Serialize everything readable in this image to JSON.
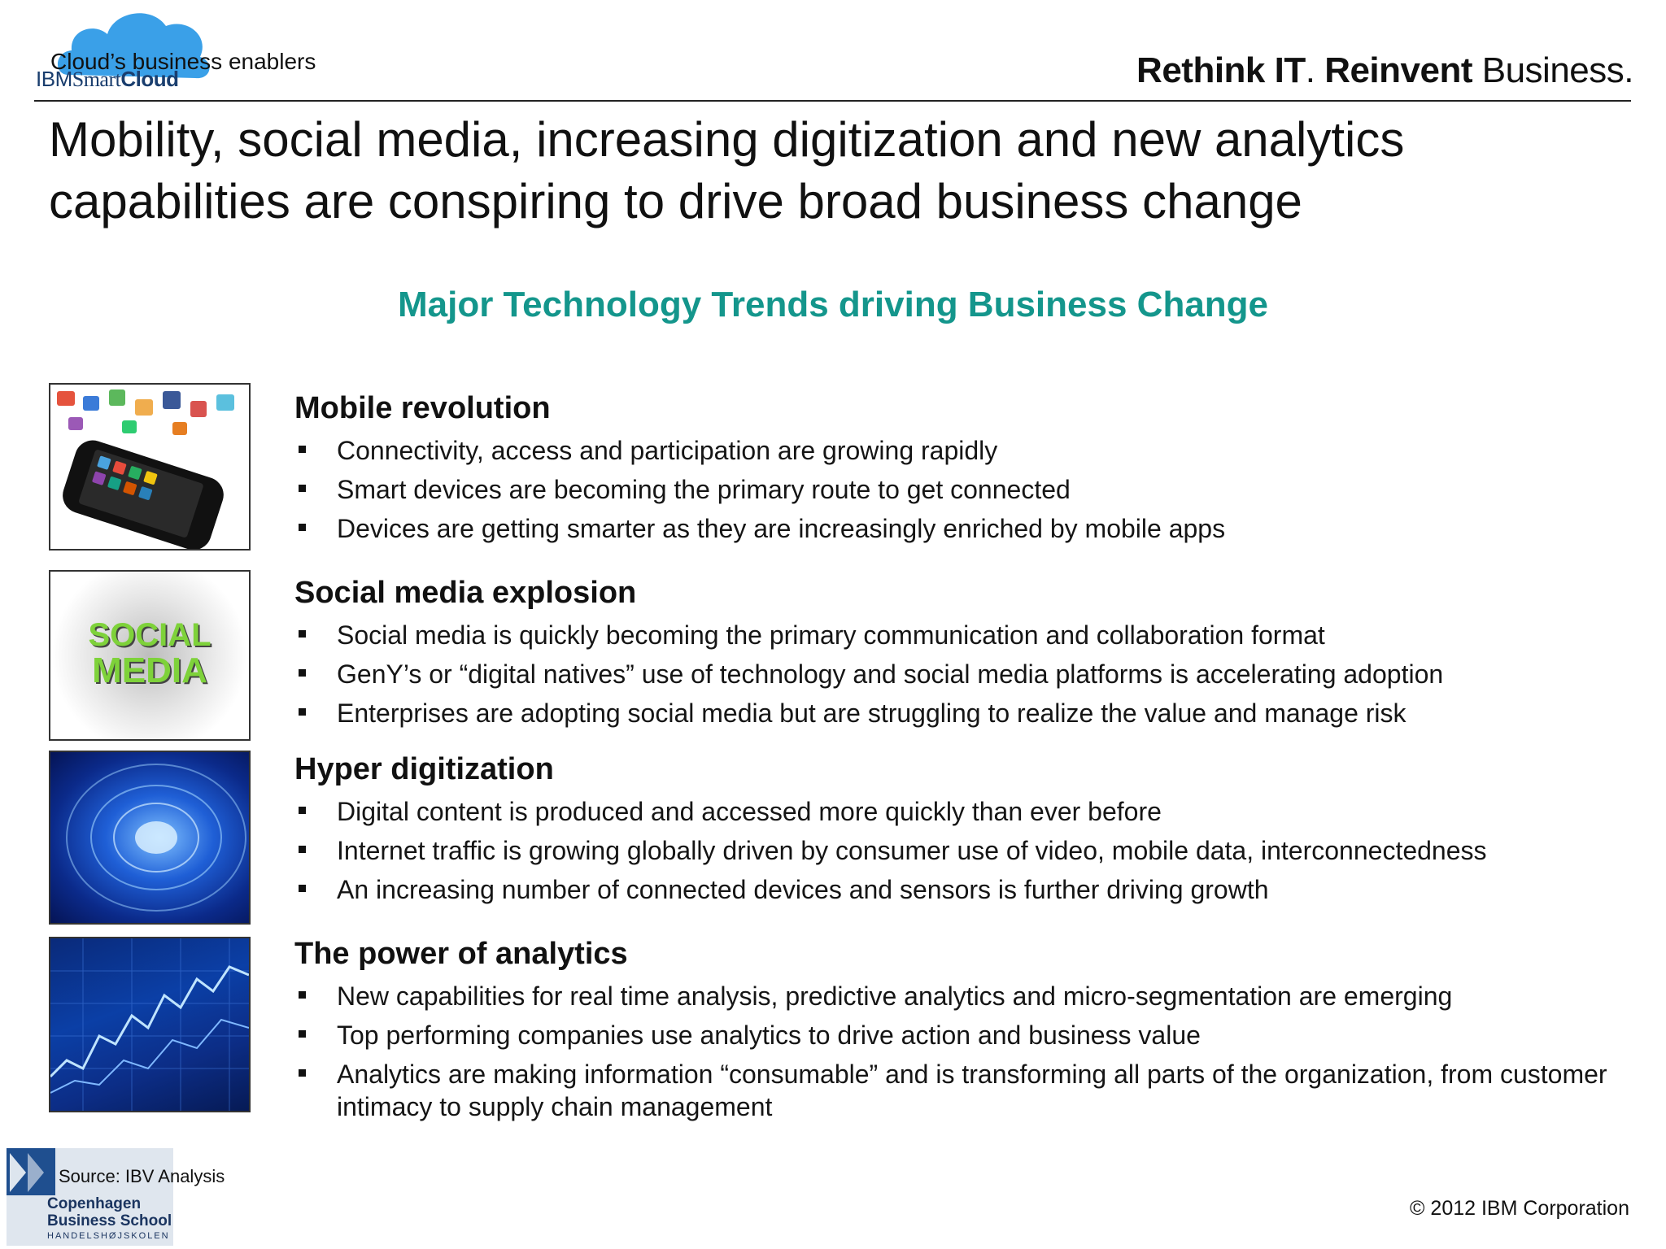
{
  "header": {
    "subtitle": "Cloud’s business enablers",
    "brand_prefix": "IBM",
    "brand_middle": "Smart",
    "brand_suffix": "Cloud",
    "tagline_part1": "Rethink IT",
    "tagline_dot": ". ",
    "tagline_part2": "Reinvent",
    "tagline_part3": " Business."
  },
  "title": "Mobility, social media, increasing digitization and new analytics capabilities are conspiring to drive broad business change",
  "trends_heading": "Major Technology Trends driving Business Change",
  "sections": [
    {
      "heading": "Mobile revolution",
      "bullets": [
        "Connectivity, access and participation are growing rapidly",
        "Smart devices are becoming the primary route to get connected",
        "Devices are getting smarter as they are increasingly enriched by mobile apps"
      ]
    },
    {
      "heading": "Social media explosion",
      "bullets": [
        "Social media is quickly becoming the primary communication and collaboration format",
        "GenY’s or “digital natives” use of technology and social media platforms is accelerating adoption",
        "Enterprises are adopting social media but are struggling to realize the value and manage risk"
      ]
    },
    {
      "heading": "Hyper digitization",
      "bullets": [
        "Digital content is produced and accessed more quickly than ever before",
        "Internet traffic is growing globally driven by consumer use of video, mobile data, interconnectedness",
        "An increasing number of connected devices and sensors is further driving growth"
      ]
    },
    {
      "heading": "The power of analytics",
      "bullets": [
        "New capabilities for real time analysis, predictive analytics and micro-segmentation are emerging",
        "Top performing companies use analytics to drive action and business value",
        "Analytics are making information “consumable” and is transforming all parts of the organization, from customer intimacy to supply chain management"
      ]
    }
  ],
  "thumbnails": {
    "social_word1": "SOCIAL",
    "social_word2": "MEDIA"
  },
  "footer": {
    "source": "Source:  IBV Analysis",
    "copyright": "© 2012 IBM Corporation",
    "cbs_line1": "Copenhagen",
    "cbs_line2": "Business School",
    "cbs_line3": "HANDELSHØJSKOLEN"
  },
  "colors": {
    "accent": "#14968c",
    "brand_blue": "#1a3e6e",
    "cloud_blue": "#3aa0e8"
  }
}
